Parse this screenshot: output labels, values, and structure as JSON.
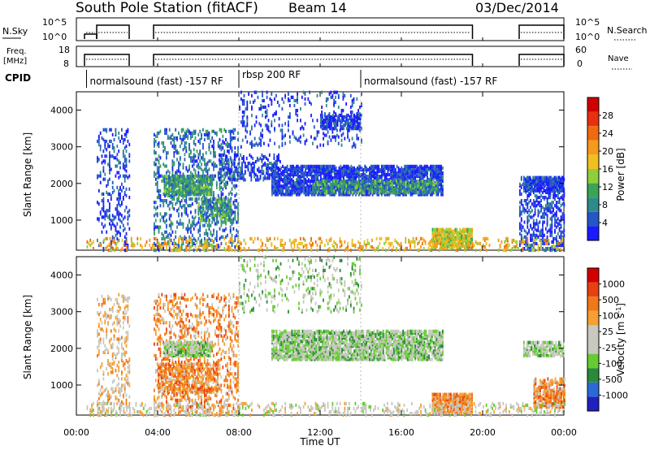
{
  "header": {
    "title": "South Pole Station (fitACF)",
    "beam": "Beam 14",
    "date": "03/Dec/2014"
  },
  "panels": {
    "nsky": {
      "left_label": "N.Sky",
      "right_label": "N.Search",
      "left_ticks": [
        "10^5",
        "10^0"
      ],
      "right_ticks": [
        "10^5",
        "10^0"
      ]
    },
    "freq": {
      "left_label_line1": "Freq.",
      "left_label_line2": "[MHz]",
      "right_label": "Nave",
      "left_ticks": [
        "18",
        "8"
      ],
      "right_ticks": [
        "60",
        "0"
      ]
    },
    "cpid": {
      "label": "CPID",
      "segments": [
        {
          "label": "normalsound (fast) -157 RF",
          "start_h": 0.5,
          "end_h": 8.0
        },
        {
          "label": "rbsp 200 RF",
          "start_h": 8.0,
          "end_h": 14.0
        },
        {
          "label": "normalsound (fast) -157 RF",
          "start_h": 14.0,
          "end_h": 24.0
        }
      ]
    }
  },
  "colorbars": {
    "power": {
      "label": "Power [dB]",
      "ticks": [
        "28",
        "24",
        "20",
        "16",
        "12",
        "8",
        "4"
      ],
      "colors": [
        "#1a1aff",
        "#2456c8",
        "#2f8a8a",
        "#3aa356",
        "#8fcf3a",
        "#f0c020",
        "#f59a1a",
        "#f06a10",
        "#e83010",
        "#d00000"
      ]
    },
    "velocity": {
      "label": "Velocity [m s",
      "label_sup": "-1",
      "label_end": "]",
      "ticks": [
        "1000",
        "500",
        "100",
        "25",
        "-25",
        "-100",
        "-500",
        "-1000"
      ],
      "colors": [
        "#2020c0",
        "#2a6ad8",
        "#2a8a3a",
        "#66cc33",
        "#c8c8c0",
        "#c8c8c0",
        "#f5a030",
        "#f07818",
        "#e84010",
        "#d40000"
      ]
    }
  },
  "chart_data": {
    "type": "heatmap",
    "xlabel": "Time UT",
    "x_ticks": [
      "00:00",
      "04:00",
      "08:00",
      "12:00",
      "16:00",
      "20:00",
      "00:00"
    ],
    "xlim_hours": [
      0,
      24
    ],
    "ylabel": "Slant Range [km]",
    "ylim_km": [
      180,
      4500
    ],
    "y_ticks": [
      "1000",
      "2000",
      "3000",
      "4000"
    ],
    "panels": [
      {
        "name": "Power",
        "regions": [
          {
            "t0": 1.0,
            "t1": 2.6,
            "r0": 180,
            "r1": 3500,
            "level": 1,
            "density": 0.18
          },
          {
            "t0": 3.8,
            "t1": 8.0,
            "r0": 180,
            "r1": 3500,
            "level": 2,
            "density": 0.22
          },
          {
            "t0": 4.3,
            "t1": 6.7,
            "r0": 1700,
            "r1": 2200,
            "level": 3,
            "density": 0.75
          },
          {
            "t0": 6.0,
            "t1": 7.6,
            "r0": 1000,
            "r1": 1600,
            "level": 3,
            "density": 0.55
          },
          {
            "t0": 7.0,
            "t1": 10.0,
            "r0": 2100,
            "r1": 2800,
            "level": 1,
            "density": 0.3
          },
          {
            "t0": 9.6,
            "t1": 18.0,
            "r0": 1700,
            "r1": 2500,
            "level": 1,
            "density": 0.7
          },
          {
            "t0": 11.6,
            "t1": 17.8,
            "r0": 1750,
            "r1": 2100,
            "level": 3,
            "density": 0.6
          },
          {
            "t0": 8.0,
            "t1": 14.0,
            "r0": 3000,
            "r1": 4500,
            "level": 1,
            "density": 0.12
          },
          {
            "t0": 12.0,
            "t1": 14.0,
            "r0": 3500,
            "r1": 3900,
            "level": 1,
            "density": 0.6
          },
          {
            "t0": 17.5,
            "t1": 19.5,
            "r0": 250,
            "r1": 750,
            "level": 5,
            "density": 0.85
          },
          {
            "t0": 21.8,
            "t1": 24.0,
            "r0": 180,
            "r1": 2200,
            "level": 1,
            "density": 0.35
          },
          {
            "t0": 22.0,
            "t1": 24.0,
            "r0": 1800,
            "r1": 2200,
            "level": 1,
            "density": 0.7
          },
          {
            "t0": 0.5,
            "t1": 24.0,
            "r0": 180,
            "r1": 500,
            "level": 6,
            "density": 0.2
          }
        ]
      },
      {
        "name": "Velocity",
        "regions": [
          {
            "t0": 1.0,
            "t1": 2.6,
            "r0": 180,
            "r1": 3500,
            "level": 6,
            "density": 0.18
          },
          {
            "t0": 3.8,
            "t1": 8.0,
            "r0": 180,
            "r1": 3500,
            "level": 7,
            "density": 0.22
          },
          {
            "t0": 4.3,
            "t1": 6.7,
            "r0": 1800,
            "r1": 2200,
            "level": 4,
            "density": 0.75
          },
          {
            "t0": 4.0,
            "t1": 7.0,
            "r0": 800,
            "r1": 1600,
            "level": 7,
            "density": 0.5
          },
          {
            "t0": 9.6,
            "t1": 18.0,
            "r0": 1700,
            "r1": 2500,
            "level": 4,
            "density": 0.75
          },
          {
            "t0": 8.0,
            "t1": 14.0,
            "r0": 3000,
            "r1": 4500,
            "level": 4,
            "density": 0.12
          },
          {
            "t0": 17.5,
            "t1": 19.5,
            "r0": 250,
            "r1": 750,
            "level": 7,
            "density": 0.85
          },
          {
            "t0": 22.0,
            "t1": 24.0,
            "r0": 1800,
            "r1": 2200,
            "level": 4,
            "density": 0.7
          },
          {
            "t0": 22.5,
            "t1": 24.0,
            "r0": 400,
            "r1": 1200,
            "level": 7,
            "density": 0.6
          },
          {
            "t0": 0.5,
            "t1": 24.0,
            "r0": 180,
            "r1": 500,
            "level": 5,
            "density": 0.2
          }
        ]
      }
    ]
  }
}
